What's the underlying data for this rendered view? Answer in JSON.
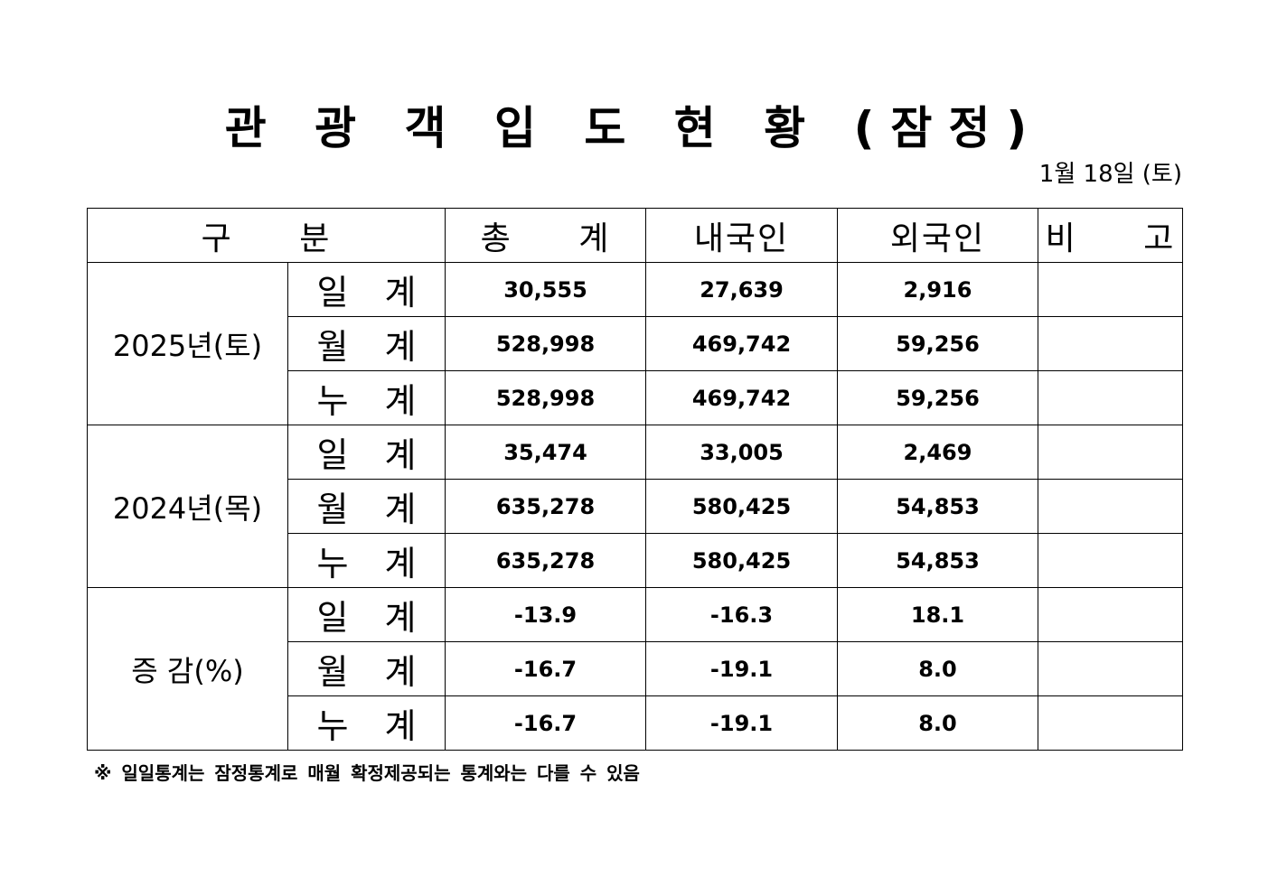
{
  "title": "관 광 객 입 도 현 황 (잠정)",
  "date": "1월 18일 (토)",
  "table": {
    "headers": {
      "category": "구 분",
      "total": "총 계",
      "domestic": "내국인",
      "foreign": "외국인",
      "remarks": "비 고"
    },
    "groups": [
      {
        "label": "2025년(토)",
        "rows": [
          {
            "label": "일 계",
            "total": "30,555",
            "domestic": "27,639",
            "foreign": "2,916",
            "remarks": ""
          },
          {
            "label": "월 계",
            "total": "528,998",
            "domestic": "469,742",
            "foreign": "59,256",
            "remarks": ""
          },
          {
            "label": "누 계",
            "total": "528,998",
            "domestic": "469,742",
            "foreign": "59,256",
            "remarks": ""
          }
        ]
      },
      {
        "label": "2024년(목)",
        "rows": [
          {
            "label": "일 계",
            "total": "35,474",
            "domestic": "33,005",
            "foreign": "2,469",
            "remarks": ""
          },
          {
            "label": "월 계",
            "total": "635,278",
            "domestic": "580,425",
            "foreign": "54,853",
            "remarks": ""
          },
          {
            "label": "누 계",
            "total": "635,278",
            "domestic": "580,425",
            "foreign": "54,853",
            "remarks": ""
          }
        ]
      },
      {
        "label": "증 감(%)",
        "rows": [
          {
            "label": "일 계",
            "total": "-13.9",
            "domestic": "-16.3",
            "foreign": "18.1",
            "remarks": ""
          },
          {
            "label": "월 계",
            "total": "-16.7",
            "domestic": "-19.1",
            "foreign": "8.0",
            "remarks": ""
          },
          {
            "label": "누 계",
            "total": "-16.7",
            "domestic": "-19.1",
            "foreign": "8.0",
            "remarks": ""
          }
        ]
      }
    ]
  },
  "footnote": "※ 일일통계는 잠정통계로 매월 확정제공되는 통계와는 다를 수 있음"
}
